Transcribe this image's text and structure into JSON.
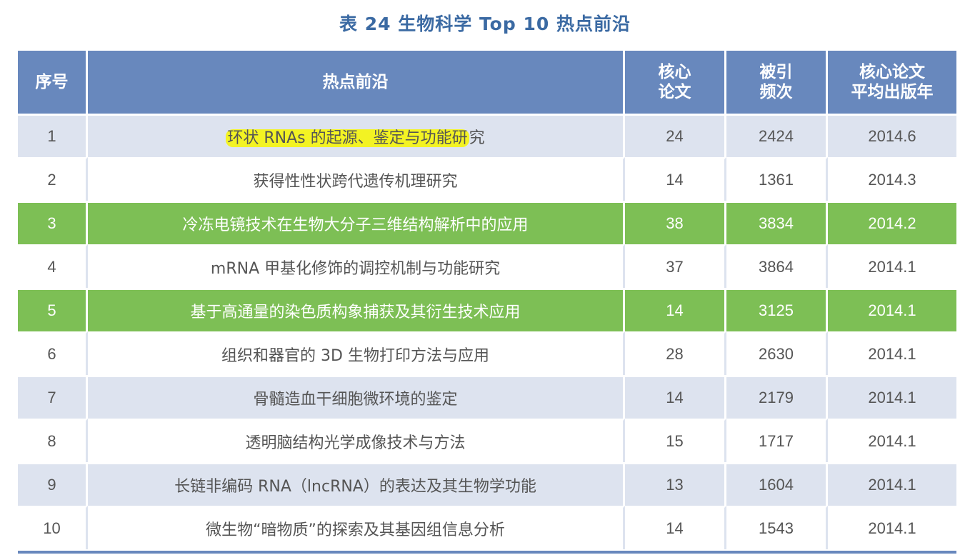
{
  "title": "表 24 生物科学 Top 10 热点前沿",
  "columns": {
    "index": "序号",
    "topic": "热点前沿",
    "core_papers_l1": "核心",
    "core_papers_l2": "论文",
    "citations_l1": "被引",
    "citations_l2": "频次",
    "avg_year_l1": "核心论文",
    "avg_year_l2": "平均出版年"
  },
  "rows": [
    {
      "index": "1",
      "topic_highlighted": "环状 RNAs 的起源、鉴定与功能研",
      "topic_rest": "究",
      "core": "24",
      "cited": "2424",
      "year": "2014.6",
      "row_highlight": false
    },
    {
      "index": "2",
      "topic": "获得性性状跨代遗传机理研究",
      "core": "14",
      "cited": "1361",
      "year": "2014.3",
      "row_highlight": false
    },
    {
      "index": "3",
      "topic": "冷冻电镜技术在生物大分子三维结构解析中的应用",
      "core": "38",
      "cited": "3834",
      "year": "2014.2",
      "row_highlight": true,
      "highlight_color": "#7dbf55"
    },
    {
      "index": "4",
      "topic": "mRNA 甲基化修饰的调控机制与功能研究",
      "core": "37",
      "cited": "3864",
      "year": "2014.1",
      "row_highlight": false
    },
    {
      "index": "5",
      "topic": "基于高通量的染色质构象捕获及其衍生技术应用",
      "core": "14",
      "cited": "3125",
      "year": "2014.1",
      "row_highlight": true,
      "highlight_color": "#7dbf55"
    },
    {
      "index": "6",
      "topic": "组织和器官的 3D 生物打印方法与应用",
      "core": "28",
      "cited": "2630",
      "year": "2014.1",
      "row_highlight": false
    },
    {
      "index": "7",
      "topic": "骨髓造血干细胞微环境的鉴定",
      "core": "14",
      "cited": "2179",
      "year": "2014.1",
      "row_highlight": false
    },
    {
      "index": "8",
      "topic": "透明脑结构光学成像技术与方法",
      "core": "15",
      "cited": "1717",
      "year": "2014.1",
      "row_highlight": false
    },
    {
      "index": "9",
      "topic": "长链非编码 RNA（lncRNA）的表达及其生物学功能",
      "core": "13",
      "cited": "1604",
      "year": "2014.1",
      "row_highlight": false
    },
    {
      "index": "10",
      "topic": "微生物“暗物质”的探索及其基因组信息分析",
      "core": "14",
      "cited": "1543",
      "year": "2014.1",
      "row_highlight": false
    }
  ],
  "colors": {
    "title": "#3b6aa3",
    "header_bg": "#6888bd",
    "stripe_bg": "#dde3ef",
    "row_highlight": "#7dbf55",
    "text_highlight": "#f3f323"
  }
}
